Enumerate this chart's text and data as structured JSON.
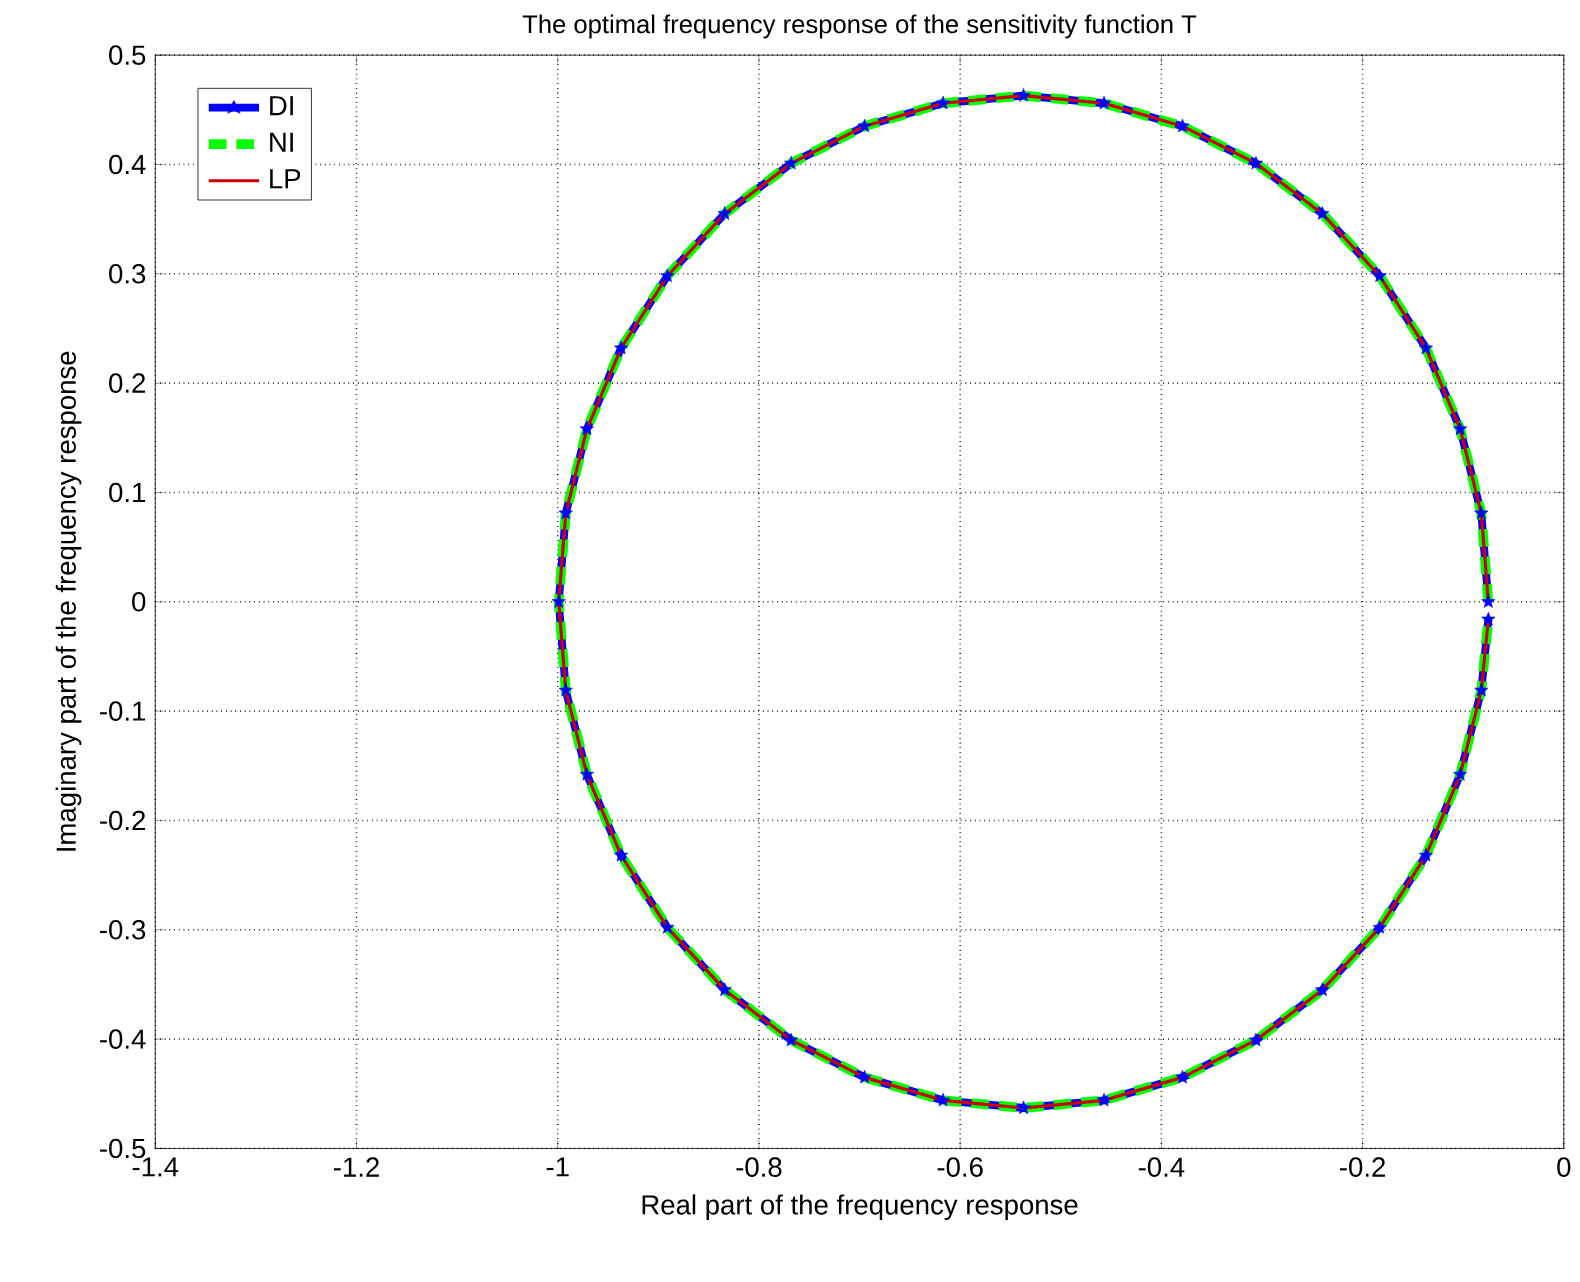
{
  "chart_data": {
    "type": "line",
    "title": "The optimal frequency response of the sensitivity function T",
    "xlabel": "Real part of the frequency response",
    "ylabel": "Imaginary part of the frequency response",
    "x": [
      -0.075,
      -0.082,
      -0.103,
      -0.137,
      -0.183,
      -0.24,
      -0.306,
      -0.379,
      -0.457,
      -0.537,
      -0.617,
      -0.695,
      -0.768,
      -0.834,
      -0.891,
      -0.937,
      -0.971,
      -0.992,
      -0.999,
      -0.992,
      -0.971,
      -0.937,
      -0.891,
      -0.834,
      -0.768,
      -0.695,
      -0.617,
      -0.537,
      -0.457,
      -0.379,
      -0.306,
      -0.24,
      -0.183,
      -0.137,
      -0.103,
      -0.082,
      -0.075
    ],
    "series": [
      {
        "name": "DI",
        "color": "#0000ff",
        "marker": "star",
        "line_style": "solid",
        "values": [
          0,
          0.081,
          0.158,
          0.232,
          0.298,
          0.355,
          0.401,
          0.435,
          0.456,
          0.463,
          0.456,
          0.435,
          0.401,
          0.355,
          0.298,
          0.232,
          0.158,
          0.081,
          0,
          -0.081,
          -0.158,
          -0.232,
          -0.298,
          -0.355,
          -0.401,
          -0.435,
          -0.456,
          -0.463,
          -0.456,
          -0.435,
          -0.401,
          -0.355,
          -0.298,
          -0.232,
          -0.158,
          -0.081,
          -0.016
        ]
      },
      {
        "name": "NI",
        "color": "#00ff00",
        "line_style": "dashed",
        "values": [
          0,
          0.081,
          0.158,
          0.232,
          0.298,
          0.355,
          0.401,
          0.435,
          0.456,
          0.463,
          0.456,
          0.435,
          0.401,
          0.355,
          0.298,
          0.232,
          0.158,
          0.081,
          0,
          -0.081,
          -0.158,
          -0.232,
          -0.298,
          -0.355,
          -0.401,
          -0.435,
          -0.456,
          -0.463,
          -0.456,
          -0.435,
          -0.401,
          -0.355,
          -0.298,
          -0.232,
          -0.158,
          -0.081,
          -0.016
        ]
      },
      {
        "name": "LP",
        "color": "#cc0000",
        "line_style": "solid",
        "values": [
          0,
          0.081,
          0.158,
          0.232,
          0.298,
          0.355,
          0.401,
          0.435,
          0.456,
          0.463,
          0.456,
          0.435,
          0.401,
          0.355,
          0.298,
          0.232,
          0.158,
          0.081,
          0,
          -0.081,
          -0.158,
          -0.232,
          -0.298,
          -0.355,
          -0.401,
          -0.435,
          -0.456,
          -0.463,
          -0.456,
          -0.435,
          -0.401,
          -0.355,
          -0.298,
          -0.232,
          -0.158,
          -0.081,
          -0.016
        ]
      }
    ],
    "xlim": [
      -1.4,
      0
    ],
    "xticks": [
      -1.4,
      -1.2,
      -1,
      -0.8,
      -0.6,
      -0.4,
      -0.2,
      0
    ],
    "ylim": [
      -0.5,
      0.5
    ],
    "yticks": [
      -0.5,
      -0.4,
      -0.3,
      -0.2,
      -0.1,
      0,
      0.1,
      0.2,
      0.3,
      0.4,
      0.5
    ],
    "grid": true,
    "legend": "top left"
  }
}
